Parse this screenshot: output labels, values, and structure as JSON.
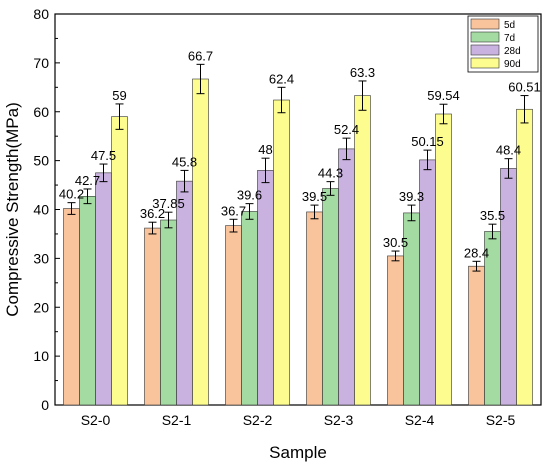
{
  "chart_data": {
    "type": "bar",
    "title": "",
    "xlabel": "Sample",
    "ylabel": "Compressive Strength(MPa)",
    "ylim": [
      0,
      80
    ],
    "yticks": [
      0,
      10,
      20,
      30,
      40,
      50,
      60,
      70,
      80
    ],
    "grid": false,
    "legend_position": "top-right",
    "categories": [
      "S2-0",
      "S2-1",
      "S2-2",
      "S2-3",
      "S2-4",
      "S2-5"
    ],
    "series": [
      {
        "name": "5d",
        "color": "#f9c49b",
        "values": [
          40.2,
          36.2,
          36.7,
          39.5,
          30.5,
          28.4
        ],
        "labels": [
          "40.2",
          "36.2",
          "36.7",
          "39.5",
          "30.5",
          "28.4"
        ],
        "errors": [
          1.2,
          1.2,
          1.3,
          1.4,
          1.0,
          1.0
        ]
      },
      {
        "name": "7d",
        "color": "#a3dba3",
        "values": [
          42.7,
          37.85,
          39.6,
          44.3,
          39.3,
          35.5
        ],
        "labels": [
          "42.7",
          "37.85",
          "39.6",
          "44.3",
          "39.3",
          "35.5"
        ],
        "errors": [
          1.5,
          1.6,
          1.6,
          1.4,
          1.6,
          1.5
        ]
      },
      {
        "name": "28d",
        "color": "#c9b2e0",
        "values": [
          47.5,
          45.8,
          48,
          52.4,
          50.15,
          48.4
        ],
        "labels": [
          "47.5",
          "45.8",
          "48",
          "52.4",
          "50.15",
          "48.4"
        ],
        "errors": [
          1.8,
          2.2,
          2.5,
          2.2,
          2.0,
          2.0
        ]
      },
      {
        "name": "90d",
        "color": "#fdfd8f",
        "values": [
          59,
          66.7,
          62.4,
          63.3,
          59.54,
          60.51
        ],
        "labels": [
          "59",
          "66.7",
          "62.4",
          "63.3",
          "59.54",
          "60.51"
        ],
        "errors": [
          2.6,
          3.0,
          2.6,
          3.0,
          2.0,
          2.8
        ]
      }
    ]
  }
}
